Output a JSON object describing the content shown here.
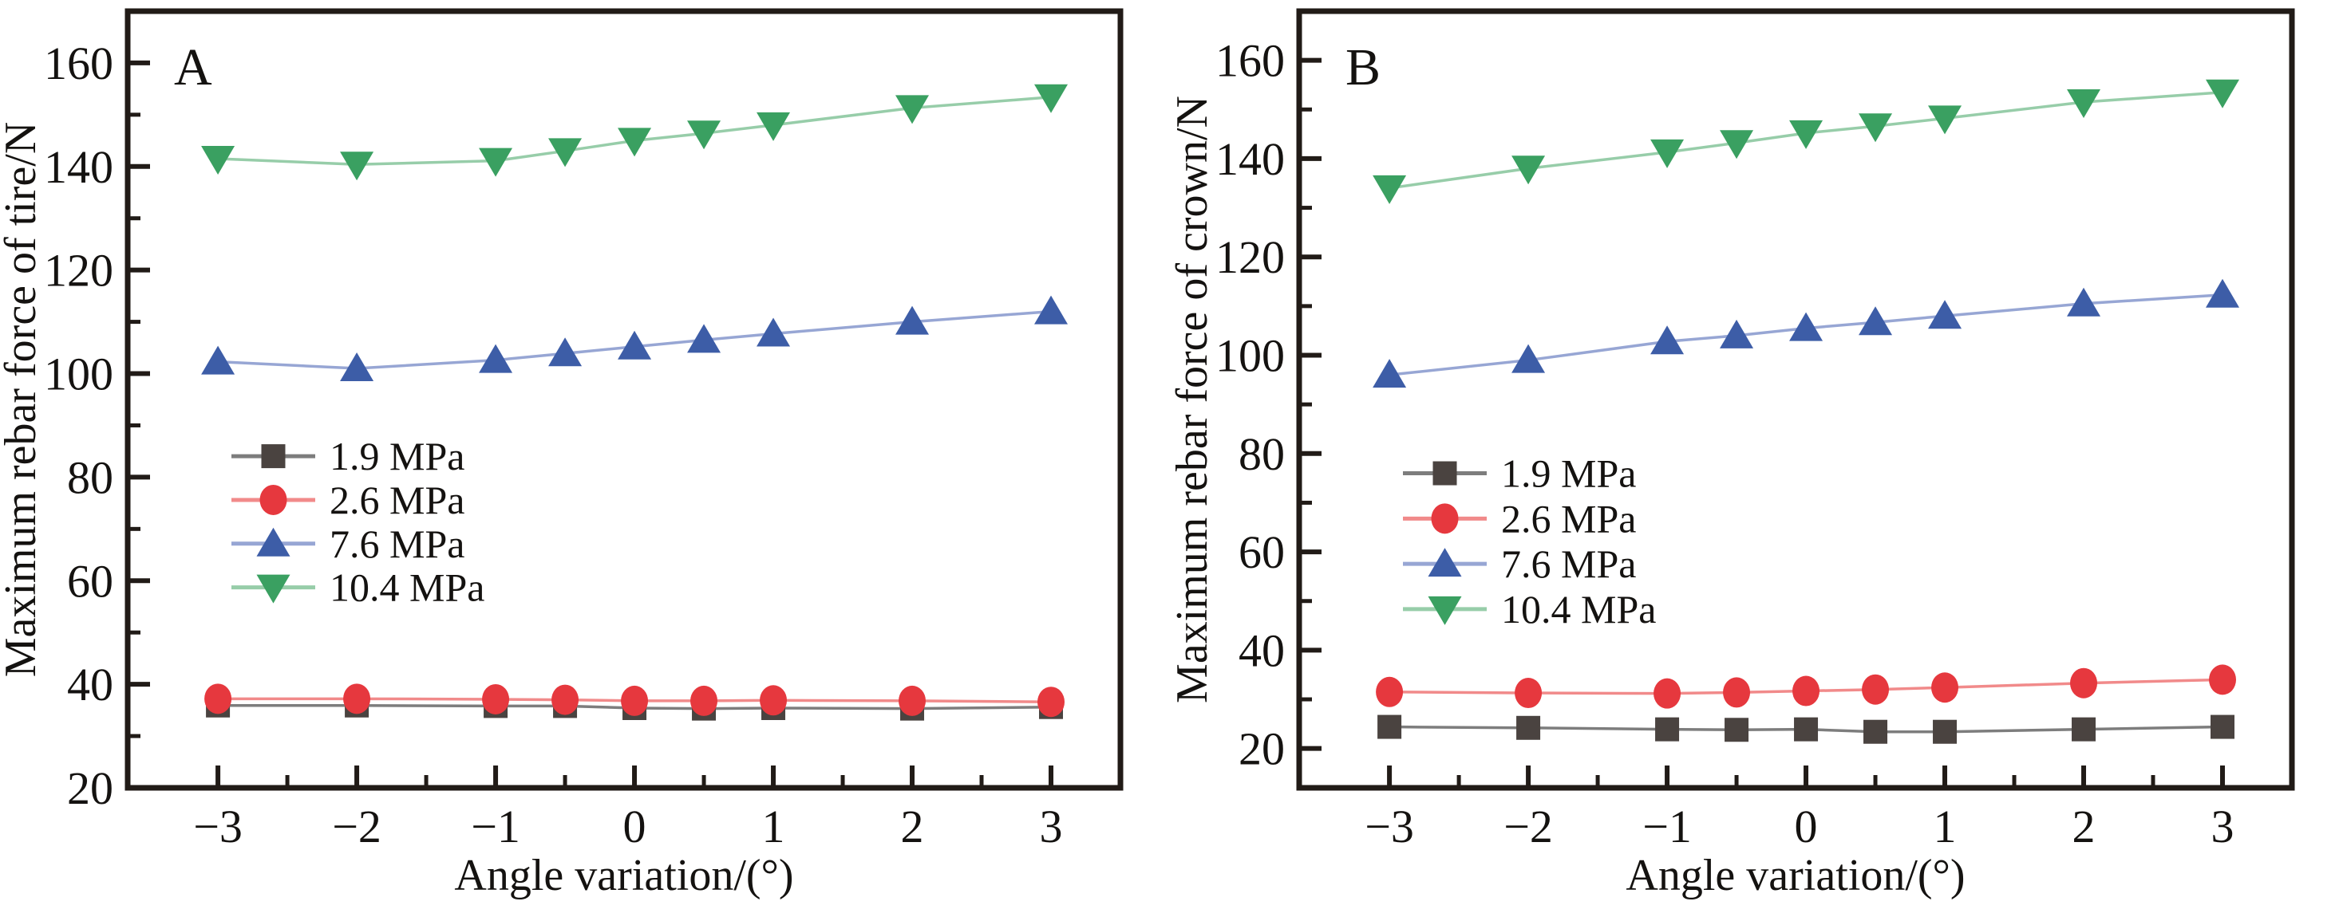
{
  "figure": {
    "description": "Two-panel line chart figure",
    "panel_labels": [
      "A",
      "B"
    ]
  },
  "style": {
    "background": "#ffffff",
    "axis_color": "#211b17",
    "text_color": "#141210"
  },
  "chart_data": [
    {
      "type": "line",
      "title": "A",
      "xlabel": "Angle variation/(°)",
      "ylabel": "Maximum rebar force of tire/N",
      "x": [
        -3,
        -2,
        -1,
        -0.5,
        0,
        0.5,
        1,
        2,
        3
      ],
      "xlim": [
        -3.65,
        3.5
      ],
      "ylim": [
        20,
        170
      ],
      "xticks": [
        -3,
        -2,
        -1,
        0,
        1,
        2,
        3
      ],
      "x_minor_ticks": [
        -2.5,
        -1.5,
        -0.5,
        0.5,
        1.5,
        2.5
      ],
      "yticks": [
        20,
        40,
        60,
        80,
        100,
        120,
        140,
        160
      ],
      "y_minor_ticks": [
        30,
        50,
        70,
        90,
        110,
        130,
        150
      ],
      "grid": false,
      "legend_position": "center-left",
      "series": [
        {
          "name": "1.9 MPa",
          "marker": "square",
          "marker_color": "#4a4340",
          "line_color": "#7d7d7d",
          "values": [
            35.9,
            35.9,
            35.8,
            35.8,
            35.4,
            35.3,
            35.4,
            35.3,
            35.6
          ]
        },
        {
          "name": "2.6 MPa",
          "marker": "circle",
          "marker_color": "#e6383e",
          "line_color": "#f18a8a",
          "values": [
            37.2,
            37.2,
            37.1,
            37.0,
            36.8,
            36.8,
            36.9,
            36.8,
            36.6
          ]
        },
        {
          "name": "7.6 MPa",
          "marker": "triangle-up",
          "marker_color": "#3d5da7",
          "line_color": "#97a6d4",
          "values": [
            102.3,
            101.0,
            102.6,
            103.9,
            105.2,
            106.5,
            107.7,
            110.0,
            112.0
          ]
        },
        {
          "name": "10.4 MPa",
          "marker": "triangle-down",
          "marker_color": "#3aa061",
          "line_color": "#97cda9",
          "values": [
            141.5,
            140.4,
            141.1,
            143.0,
            145.0,
            146.4,
            148.0,
            151.3,
            153.4
          ]
        }
      ]
    },
    {
      "type": "line",
      "title": "B",
      "xlabel": "Angle variation/(°)",
      "ylabel": "Maximum rebar force of crown/N",
      "x": [
        -3,
        -2,
        -1,
        -0.5,
        0,
        0.5,
        1,
        2,
        3
      ],
      "xlim": [
        -3.65,
        3.5
      ],
      "ylim": [
        12,
        170
      ],
      "xticks": [
        -3,
        -2,
        -1,
        0,
        1,
        2,
        3
      ],
      "x_minor_ticks": [
        -2.5,
        -1.5,
        -0.5,
        0.5,
        1.5,
        2.5
      ],
      "yticks": [
        20,
        40,
        60,
        80,
        100,
        120,
        140,
        160
      ],
      "y_minor_ticks": [
        30,
        50,
        70,
        90,
        110,
        130,
        150
      ],
      "grid": false,
      "legend_position": "center-left",
      "series": [
        {
          "name": "1.9 MPa",
          "marker": "square",
          "marker_color": "#4a4340",
          "line_color": "#7d7d7d",
          "values": [
            24.4,
            24.2,
            23.9,
            23.8,
            23.9,
            23.4,
            23.4,
            23.9,
            24.4
          ]
        },
        {
          "name": "2.6 MPa",
          "marker": "circle",
          "marker_color": "#e6383e",
          "line_color": "#f18a8a",
          "values": [
            31.5,
            31.3,
            31.2,
            31.4,
            31.7,
            32.0,
            32.4,
            33.3,
            34.0
          ]
        },
        {
          "name": "7.6 MPa",
          "marker": "triangle-up",
          "marker_color": "#3d5da7",
          "line_color": "#97a6d4",
          "values": [
            96.0,
            99.0,
            102.8,
            104.0,
            105.5,
            106.7,
            108.0,
            110.5,
            112.3
          ]
        },
        {
          "name": "10.4 MPa",
          "marker": "triangle-down",
          "marker_color": "#3aa061",
          "line_color": "#97cda9",
          "values": [
            134.0,
            138.0,
            141.3,
            143.2,
            145.2,
            146.6,
            148.2,
            151.5,
            153.5
          ]
        }
      ]
    }
  ]
}
